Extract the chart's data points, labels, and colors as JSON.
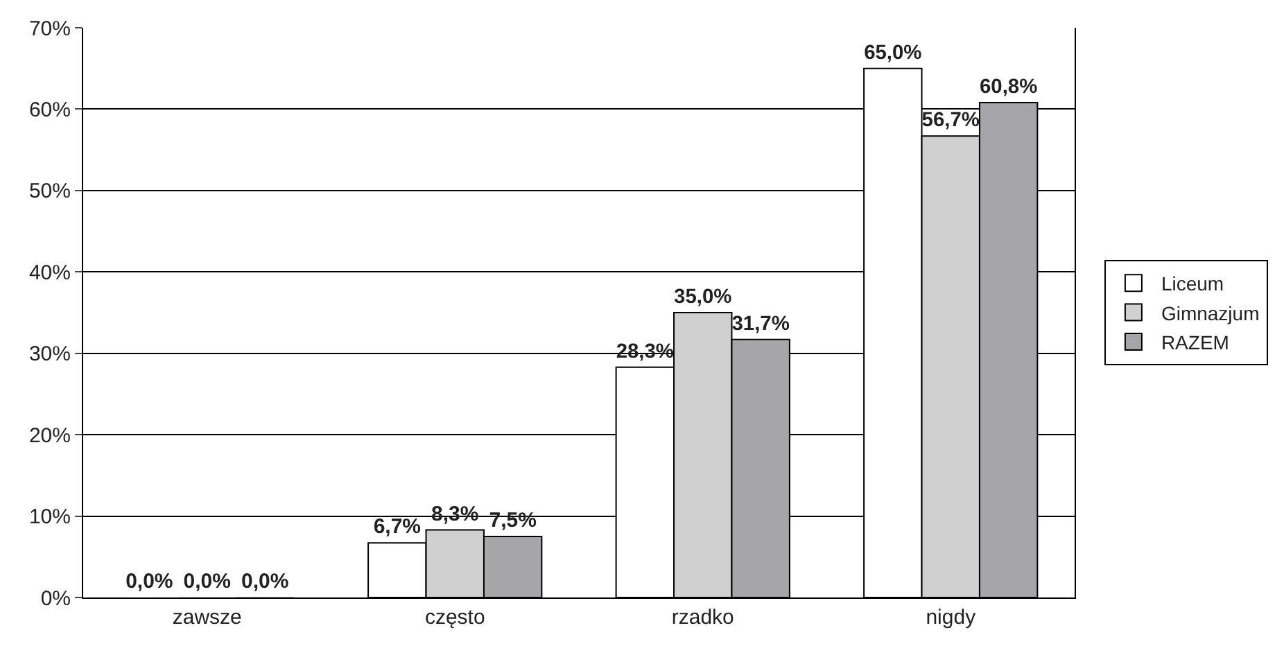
{
  "chart_data": {
    "type": "bar",
    "categories": [
      "zawsze",
      "często",
      "rzadko",
      "nigdy"
    ],
    "series": [
      {
        "name": "Liceum",
        "color": "#ffffff",
        "values": [
          0.0,
          6.7,
          28.3,
          65.0
        ],
        "value_labels": [
          "0,0%",
          "6,7%",
          "28,3%",
          "65,0%"
        ]
      },
      {
        "name": "Gimnazjum",
        "color": "#d0d0d0",
        "values": [
          0.0,
          8.3,
          35.0,
          56.7
        ],
        "value_labels": [
          "0,0%",
          "8,3%",
          "35,0%",
          "56,7%"
        ]
      },
      {
        "name": "RAZEM",
        "color": "#a6a6a8",
        "values": [
          0.0,
          7.5,
          31.7,
          60.8
        ],
        "value_labels": [
          "0,0%",
          "7,5%",
          "31,7%",
          "60,8%"
        ]
      }
    ],
    "ylim": [
      0,
      70
    ],
    "yticks": [
      {
        "value": 0,
        "label": "0%"
      },
      {
        "value": 10,
        "label": "10%"
      },
      {
        "value": 20,
        "label": "20%"
      },
      {
        "value": 30,
        "label": "30%"
      },
      {
        "value": 40,
        "label": "40%"
      },
      {
        "value": 50,
        "label": "50%"
      },
      {
        "value": 60,
        "label": "60%"
      },
      {
        "value": 70,
        "label": "70%"
      }
    ],
    "grid": "y",
    "legend": "right"
  }
}
